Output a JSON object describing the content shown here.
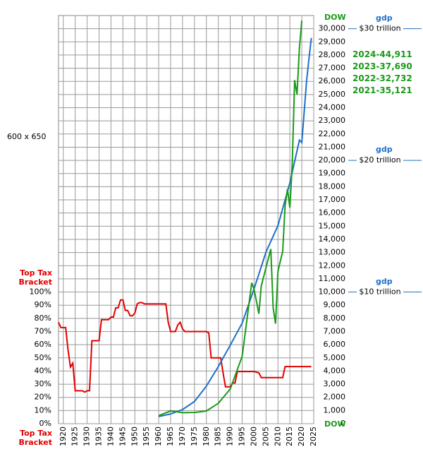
{
  "chart_data": {
    "type": "line",
    "size_label": "600 x 650",
    "xlim": [
      1918,
      2025
    ],
    "xticks": [
      1920,
      1925,
      1930,
      1935,
      1940,
      1945,
      1950,
      1955,
      1960,
      1965,
      1970,
      1975,
      1980,
      1985,
      1990,
      1995,
      2000,
      2005,
      2010,
      2015,
      2020,
      2025
    ],
    "ylim": [
      0,
      310
    ],
    "yticks": [
      {
        "value": 0,
        "label": "0%"
      },
      {
        "value": 10,
        "label": "10%"
      },
      {
        "value": 20,
        "label": "20%"
      },
      {
        "value": 30,
        "label": "30%"
      },
      {
        "value": 40,
        "label": "40%"
      },
      {
        "value": 50,
        "label": "50%"
      },
      {
        "value": 60,
        "label": "60%"
      },
      {
        "value": 70,
        "label": "70%"
      },
      {
        "value": 80,
        "label": "80%"
      },
      {
        "value": 90,
        "label": "90%"
      },
      {
        "value": 100,
        "label": "100%"
      }
    ],
    "y2lim": [
      0,
      31000
    ],
    "y2ticks": [
      {
        "value": 0,
        "label": "0"
      },
      {
        "value": 1000,
        "label": "1,000"
      },
      {
        "value": 2000,
        "label": "2,000"
      },
      {
        "value": 3000,
        "label": "3,000"
      },
      {
        "value": 4000,
        "label": "4,000"
      },
      {
        "value": 5000,
        "label": "5,000"
      },
      {
        "value": 6000,
        "label": "6,000"
      },
      {
        "value": 7000,
        "label": "7,000"
      },
      {
        "value": 8000,
        "label": "8,000"
      },
      {
        "value": 9000,
        "label": "9,000"
      },
      {
        "value": 10000,
        "label": "10,000"
      },
      {
        "value": 11000,
        "label": "11,000"
      },
      {
        "value": 12000,
        "label": "12,000"
      },
      {
        "value": 13000,
        "label": "13,000"
      },
      {
        "value": 14000,
        "label": "14,000"
      },
      {
        "value": 15000,
        "label": "15,000"
      },
      {
        "value": 16000,
        "label": "16,000"
      },
      {
        "value": 17000,
        "label": "17,000"
      },
      {
        "value": 18000,
        "label": "18,000"
      },
      {
        "value": 19000,
        "label": "19,000"
      },
      {
        "value": 20000,
        "label": "20,000"
      },
      {
        "value": 21000,
        "label": "21,000"
      },
      {
        "value": 22000,
        "label": "22,000"
      },
      {
        "value": 23000,
        "label": "23,000"
      },
      {
        "value": 24000,
        "label": "24,000"
      },
      {
        "value": 25000,
        "label": "25,000"
      },
      {
        "value": 26000,
        "label": "26,000"
      },
      {
        "value": 27000,
        "label": "27,000"
      },
      {
        "value": 28000,
        "label": "28,000"
      },
      {
        "value": 29000,
        "label": "29,000"
      },
      {
        "value": 30000,
        "label": "30,000"
      }
    ],
    "grid": true,
    "series": [
      {
        "name": "Top Tax Bracket",
        "color": "#e00000",
        "axis": "y",
        "x": [
          1918,
          1919,
          1921,
          1922,
          1923,
          1924,
          1925,
          1928,
          1929,
          1930,
          1931,
          1932,
          1935,
          1936,
          1939,
          1940,
          1941,
          1942,
          1943,
          1944,
          1945,
          1946,
          1947,
          1948,
          1949,
          1950,
          1951,
          1952,
          1953,
          1954,
          1963,
          1964,
          1965,
          1967,
          1968,
          1969,
          1970,
          1971,
          1980,
          1981,
          1982,
          1986,
          1987,
          1988,
          1990,
          1991,
          1992,
          1993,
          2000,
          2001,
          2002,
          2003,
          2012,
          2013,
          2024
        ],
        "values": [
          77,
          73,
          73,
          56,
          43,
          46,
          25,
          25,
          24,
          25,
          25,
          63,
          63,
          79,
          79,
          81,
          81,
          88,
          88,
          94,
          94,
          86,
          86,
          82,
          82,
          84,
          91,
          92,
          92,
          91,
          91,
          77,
          70,
          70,
          75,
          77,
          72,
          70,
          70,
          69,
          50,
          50,
          38.5,
          28,
          28,
          31,
          31,
          39.6,
          39.6,
          39.1,
          38.6,
          35,
          35,
          43.4,
          43.4
        ]
      },
      {
        "name": "gdp",
        "color": "#1f6fc8",
        "axis": "y2",
        "x": [
          1960,
          1965,
          1970,
          1975,
          1980,
          1985,
          1990,
          1995,
          2000,
          2005,
          2010,
          2015,
          2019,
          2020,
          2021,
          2022,
          2023,
          2024
        ],
        "values": [
          543,
          743,
          1073,
          1685,
          2857,
          4339,
          5963,
          7640,
          10251,
          13039,
          15049,
          18295,
          21540,
          21354,
          23681,
          26007,
          27721,
          29300
        ]
      },
      {
        "name": "DOW",
        "color": "#1a9a1a",
        "axis": "y2",
        "x": [
          1960,
          1965,
          1970,
          1975,
          1980,
          1985,
          1990,
          1995,
          1999,
          2000,
          2002,
          2003,
          2007,
          2008,
          2009,
          2010,
          2012,
          2013,
          2014,
          2015,
          2016,
          2017,
          2018,
          2019,
          2020
        ],
        "values": [
          616,
          969,
          839,
          852,
          964,
          1547,
          2634,
          5117,
          10700,
          10200,
          8342,
          10454,
          13265,
          8776,
          7600,
          11578,
          13104,
          16577,
          17823,
          16400,
          19763,
          26100,
          25000,
          28538,
          30606
        ]
      }
    ],
    "gdp_labels": [
      {
        "value": 30000,
        "label": "$30 trillion"
      },
      {
        "value": 20000,
        "label": "$20 trillion"
      },
      {
        "value": 10000,
        "label": "$10 trillion"
      }
    ],
    "annotations": [
      "2024-44,911",
      "2023-37,690",
      "2022-32,732",
      "2021-35,121"
    ]
  }
}
